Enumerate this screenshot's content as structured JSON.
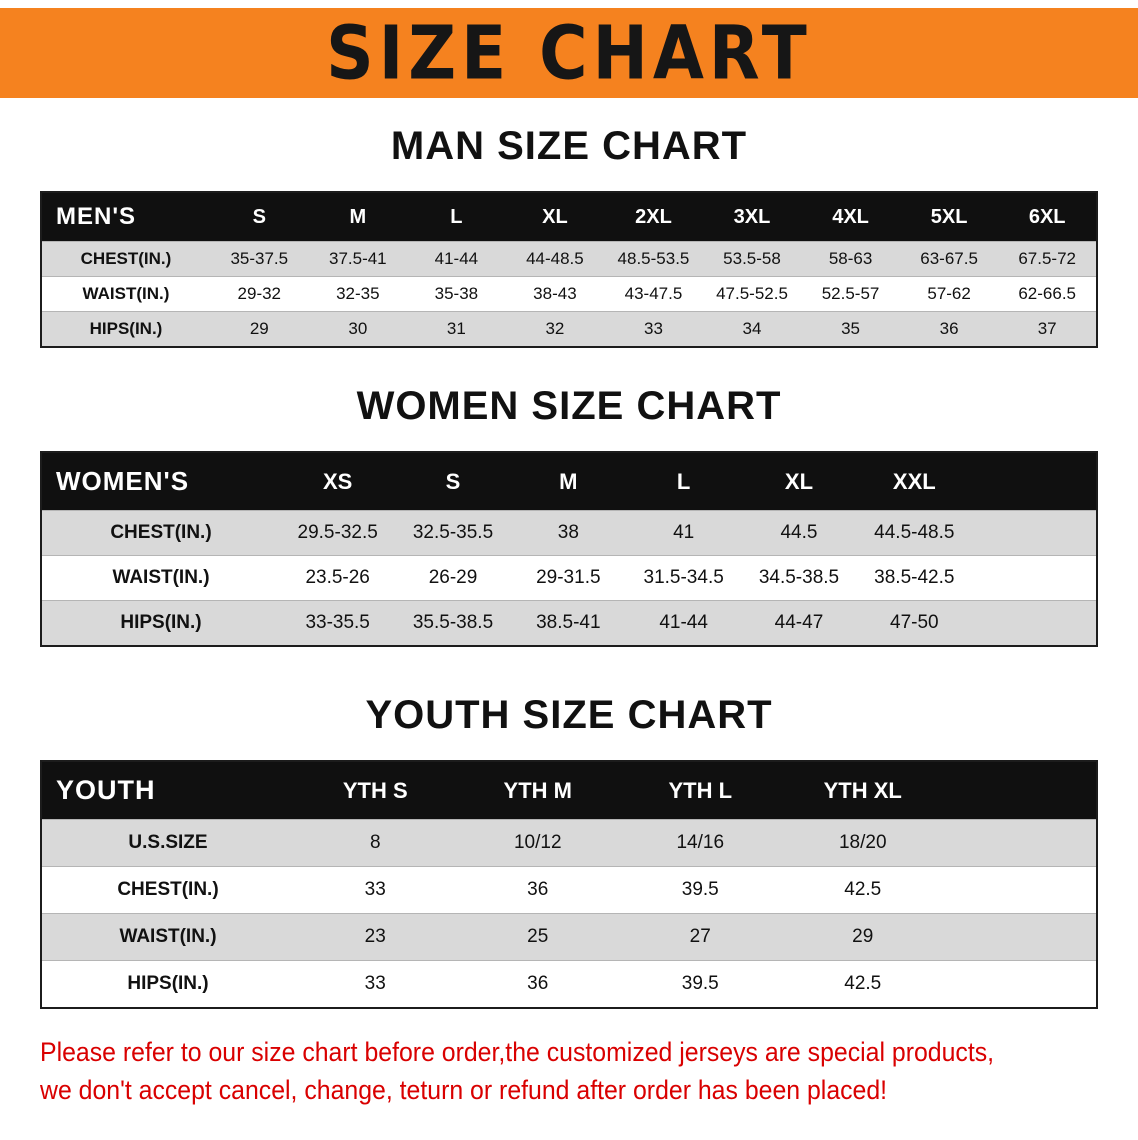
{
  "banner": {
    "title": "SIZE CHART"
  },
  "colors": {
    "banner_orange": "#f5821f",
    "table_header_black": "#101010",
    "row_gray": "#d9d9d9",
    "disclaimer_red": "#d90000"
  },
  "sections": [
    {
      "heading": "MAN SIZE CHART",
      "table": {
        "corner_label": "MEN'S",
        "columns": [
          "S",
          "M",
          "L",
          "XL",
          "2XL",
          "3XL",
          "4XL",
          "5XL",
          "6XL"
        ],
        "rows": [
          {
            "label": "CHEST(IN.)",
            "values": [
              "35-37.5",
              "37.5-41",
              "41-44",
              "44-48.5",
              "48.5-53.5",
              "53.5-58",
              "58-63",
              "63-67.5",
              "67.5-72"
            ]
          },
          {
            "label": "WAIST(IN.)",
            "values": [
              "29-32",
              "32-35",
              "35-38",
              "38-43",
              "43-47.5",
              "47.5-52.5",
              "52.5-57",
              "57-62",
              "62-66.5"
            ]
          },
          {
            "label": "HIPS(IN.)",
            "values": [
              "29",
              "30",
              "31",
              "32",
              "33",
              "34",
              "35",
              "36",
              "37"
            ]
          }
        ]
      }
    },
    {
      "heading": "WOMEN SIZE CHART",
      "table": {
        "corner_label": "WOMEN'S",
        "columns": [
          "XS",
          "S",
          "M",
          "L",
          "XL",
          "XXL"
        ],
        "rows": [
          {
            "label": "CHEST(IN.)",
            "values": [
              "29.5-32.5",
              "32.5-35.5",
              "38",
              "41",
              "44.5",
              "44.5-48.5"
            ]
          },
          {
            "label": "WAIST(IN.)",
            "values": [
              "23.5-26",
              "26-29",
              "29-31.5",
              "31.5-34.5",
              "34.5-38.5",
              "38.5-42.5"
            ]
          },
          {
            "label": "HIPS(IN.)",
            "values": [
              "33-35.5",
              "35.5-38.5",
              "38.5-41",
              "41-44",
              "44-47",
              "47-50"
            ]
          }
        ]
      }
    },
    {
      "heading": "YOUTH SIZE CHART",
      "table": {
        "corner_label": "YOUTH",
        "columns": [
          "YTH S",
          "YTH M",
          "YTH L",
          "YTH XL"
        ],
        "rows": [
          {
            "label": "U.S.SIZE",
            "values": [
              "8",
              "10/12",
              "14/16",
              "18/20"
            ]
          },
          {
            "label": "CHEST(IN.)",
            "values": [
              "33",
              "36",
              "39.5",
              "42.5"
            ]
          },
          {
            "label": "WAIST(IN.)",
            "values": [
              "23",
              "25",
              "27",
              "29"
            ]
          },
          {
            "label": "HIPS(IN.)",
            "values": [
              "33",
              "36",
              "39.5",
              "42.5"
            ]
          }
        ]
      }
    }
  ],
  "disclaimer": {
    "line1": "Please refer to our size chart before order,the customized jerseys are special products,",
    "line2": "we don't accept cancel, change, teturn or refund after order has been placed!"
  }
}
